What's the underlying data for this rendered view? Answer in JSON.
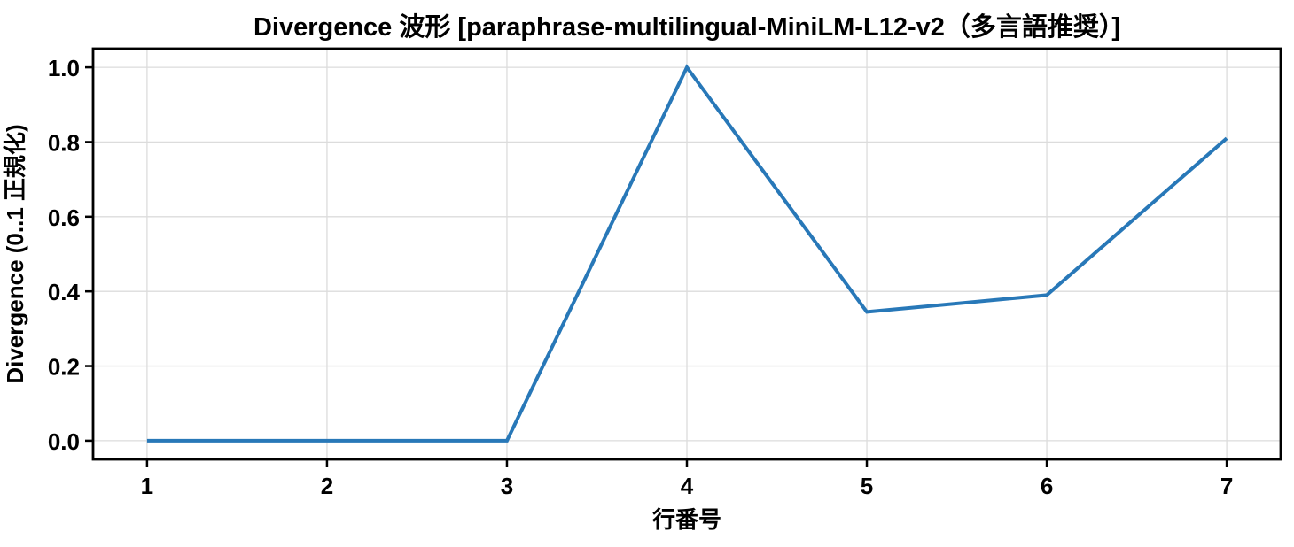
{
  "chart_data": {
    "type": "line",
    "title": "Divergence 波形 [paraphrase-multilingual-MiniLM-L12-v2（多言語推奨）]",
    "xlabel": "行番号",
    "ylabel": "Divergence (0..1 正規化)",
    "series": [
      {
        "name": "divergence",
        "x": [
          1,
          2,
          3,
          4,
          5,
          6,
          7
        ],
        "values": [
          0.0,
          0.0,
          0.0,
          1.0,
          0.345,
          0.39,
          0.81
        ]
      }
    ],
    "xticks": [
      1,
      2,
      3,
      4,
      5,
      6,
      7
    ],
    "xtick_labels": [
      "1",
      "2",
      "3",
      "4",
      "5",
      "6",
      "7"
    ],
    "yticks": [
      0.0,
      0.2,
      0.4,
      0.6,
      0.8,
      1.0
    ],
    "ytick_labels": [
      "0.0",
      "0.2",
      "0.4",
      "0.6",
      "0.8",
      "1.0"
    ],
    "xlim": [
      0.7,
      7.3
    ],
    "ylim": [
      -0.05,
      1.05
    ],
    "grid": true,
    "legend": false,
    "colors": {
      "line": "#2878b8",
      "grid": "#dcdcdc",
      "spine": "#000000",
      "tick": "#000000",
      "background": "#ffffff",
      "text": "#000000"
    },
    "line_width": 4
  }
}
